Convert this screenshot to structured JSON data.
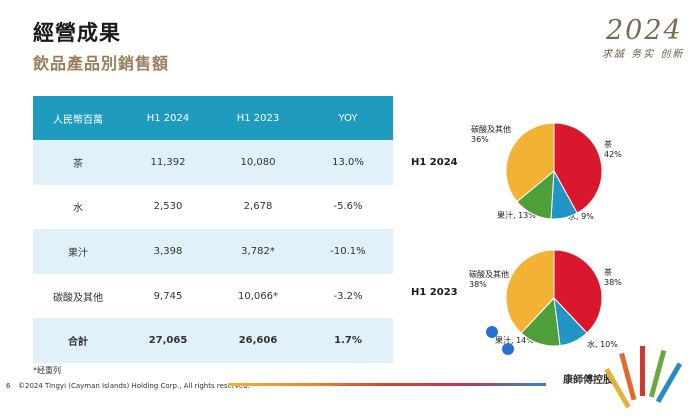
{
  "header": {
    "title": "經營成果",
    "subtitle": "飲品產品別銷售額",
    "brand_year": "2024",
    "brand_motto": "求誠 务实 创新"
  },
  "table": {
    "headers": [
      "人民幣百萬",
      "H1 2024",
      "H1 2023",
      "YOY"
    ],
    "rows": [
      [
        "茶",
        "11,392",
        "10,080",
        "13.0%"
      ],
      [
        "水",
        "2,530",
        "2,678",
        "-5.6%"
      ],
      [
        "果汁",
        "3,398",
        "3,782*",
        "-10.1%"
      ],
      [
        "碳酸及其他",
        "9,745",
        "10,066*",
        "-3.2%"
      ]
    ],
    "total": [
      "合計",
      "27,065",
      "26,606",
      "1.7%"
    ]
  },
  "footnote": "*经重列",
  "footer": {
    "page_number": "6",
    "copyright": "©2024 Tingyi (Cayman Islands) Holding Corp., All rights reserved.",
    "company": "康師傅控股"
  },
  "colors": {
    "tea": "#d9182d",
    "water": "#2196c4",
    "juice": "#4e9e3a",
    "carbonated": "#f3b233",
    "table_header": "#1f9bbd",
    "subtitle": "#9a7e5c"
  },
  "chart_data": [
    {
      "type": "pie",
      "title": "H1 2024",
      "labels": [
        "茶",
        "水",
        "果汁",
        "碳酸及其他"
      ],
      "values": [
        42,
        9,
        13,
        36
      ],
      "slice_labels": [
        {
          "name": "茶",
          "value": "42%"
        },
        {
          "name": "水",
          "value": "9%"
        },
        {
          "name": "果汁",
          "value": "13%"
        },
        {
          "name": "碳酸及其他",
          "value": "36%"
        }
      ]
    },
    {
      "type": "pie",
      "title": "H1 2023",
      "labels": [
        "茶",
        "水",
        "果汁",
        "碳酸及其他"
      ],
      "values": [
        38,
        10,
        14,
        38
      ],
      "slice_labels": [
        {
          "name": "茶",
          "value": "38%"
        },
        {
          "name": "水",
          "value": "10%"
        },
        {
          "name": "果汁",
          "value": "14%"
        },
        {
          "name": "碳酸及其他",
          "value": "38%"
        }
      ]
    }
  ]
}
